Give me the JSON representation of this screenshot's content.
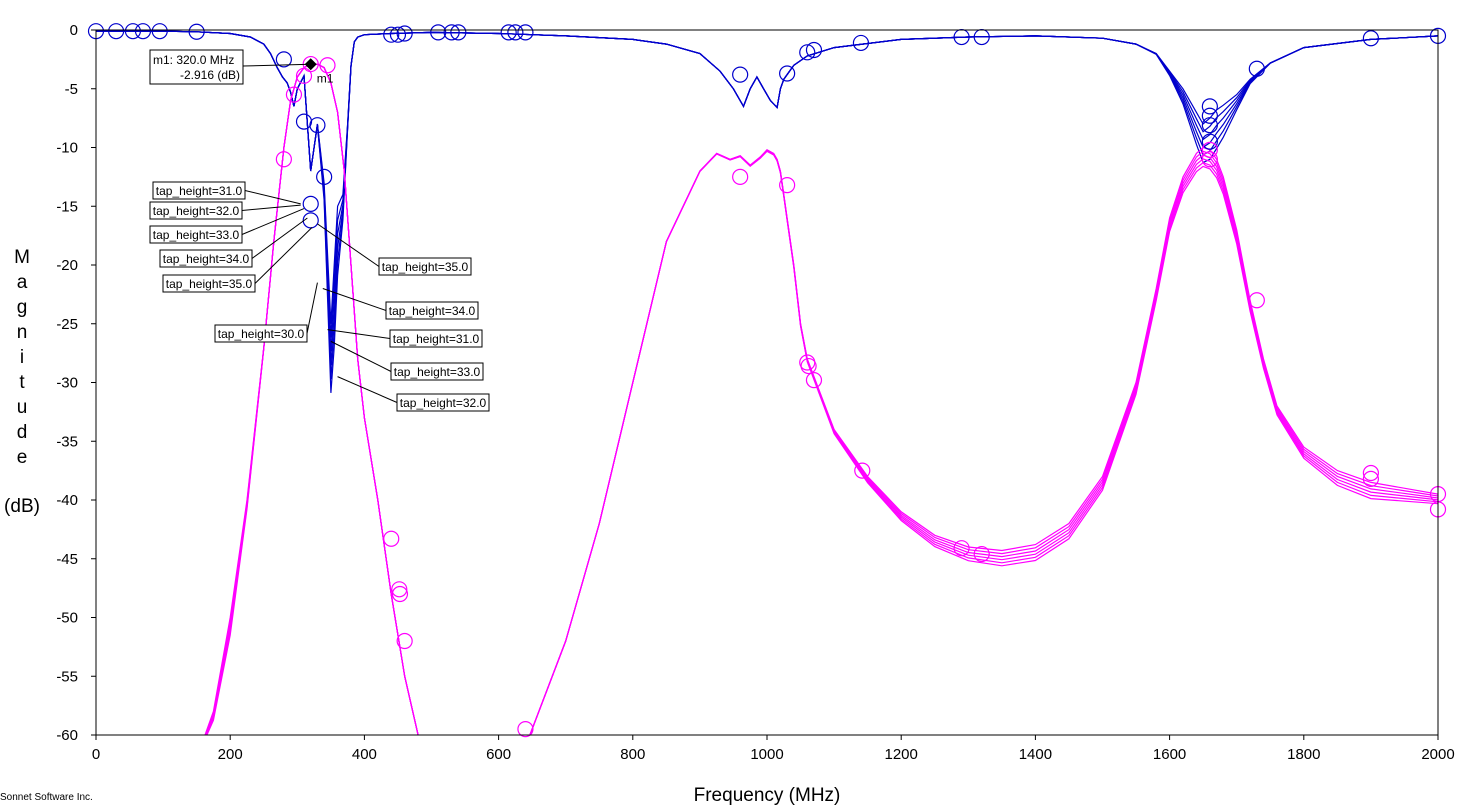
{
  "credit": "Sonnet Software Inc.",
  "chart_data": {
    "type": "line",
    "xlabel": "Frequency (MHz)",
    "ylabel_letters": [
      "M",
      "a",
      "g",
      "n",
      "i",
      "t",
      "u",
      "d",
      "e"
    ],
    "ylabel_unit": "(dB)",
    "xlim": [
      0,
      2000
    ],
    "ylim": [
      -60,
      0
    ],
    "xticks": [
      0,
      200,
      400,
      600,
      800,
      1000,
      1200,
      1400,
      1600,
      1800,
      2000
    ],
    "yticks": [
      0,
      -5,
      -10,
      -15,
      -20,
      -25,
      -30,
      -35,
      -40,
      -45,
      -50,
      -55,
      -60
    ],
    "grid": false,
    "colors": {
      "transmission": "#0000cc",
      "reflection": "#ff00ff",
      "axis": "#000000"
    },
    "parameter": "tap_height",
    "parameter_values": [
      30.0,
      31.0,
      32.0,
      33.0,
      34.0,
      35.0
    ],
    "transmission_base": {
      "x": [
        0,
        100,
        150,
        200,
        230,
        250,
        260,
        270,
        278,
        285,
        290,
        295,
        300,
        310,
        320,
        330,
        340,
        350,
        355,
        360,
        368,
        375,
        380,
        385,
        390,
        400,
        440,
        500,
        600,
        700,
        800,
        850,
        900,
        930,
        950,
        965,
        975,
        985,
        995,
        1005,
        1015,
        1020,
        1025,
        1030,
        1040,
        1060,
        1100,
        1200,
        1300,
        1400,
        1500,
        1550,
        1580,
        1600,
        1620,
        1640,
        1650,
        1660,
        1670,
        1680,
        1700,
        1720,
        1750,
        1800,
        1900,
        2000
      ],
      "y": [
        -0.1,
        -0.1,
        -0.15,
        -0.3,
        -0.6,
        -1.2,
        -2.0,
        -3.2,
        -4.0,
        -4.5,
        -5.3,
        -6.5,
        -5.0,
        -3.9,
        -12,
        -8.0,
        -13,
        -25,
        -20,
        -15,
        -14,
        -8,
        -3,
        -1,
        -0.6,
        -0.4,
        -0.3,
        -0.2,
        -0.3,
        -0.5,
        -0.8,
        -1.2,
        -2.0,
        -3.5,
        -5.0,
        -6.5,
        -5.0,
        -4.0,
        -5.0,
        -6.0,
        -6.6,
        -5.0,
        -4.2,
        -3.8,
        -3.0,
        -2.2,
        -1.5,
        -0.8,
        -0.6,
        -0.5,
        -0.7,
        -1.2,
        -2.0,
        -3.5,
        -5.0,
        -7.0,
        -8.0,
        -7.5,
        -6.8,
        -6.4,
        -5.5,
        -4.2,
        -2.8,
        -1.5,
        -0.8,
        -0.5
      ]
    },
    "transmission_dip_offsets": [
      0,
      -0.7,
      -1.4,
      -2.1,
      -2.8,
      -3.5
    ],
    "reflection_base": {
      "x": [
        150,
        175,
        200,
        225,
        250,
        265,
        280,
        290,
        300,
        310,
        320,
        330,
        340,
        350,
        360,
        370,
        380,
        390,
        400,
        420,
        440,
        460,
        480,
        500,
        640,
        700,
        750,
        800,
        850,
        900,
        925,
        945,
        960,
        975,
        990,
        1000,
        1010,
        1015,
        1020,
        1025,
        1030,
        1040,
        1050,
        1060,
        1080,
        1100,
        1150,
        1200,
        1250,
        1300,
        1350,
        1400,
        1450,
        1500,
        1550,
        1580,
        1600,
        1620,
        1640,
        1650,
        1660,
        1670,
        1680,
        1700,
        1720,
        1740,
        1760,
        1800,
        1850,
        1900,
        2000
      ],
      "y": [
        -65,
        -58,
        -50,
        -40,
        -27,
        -18,
        -10,
        -6,
        -4,
        -3.2,
        -2.9,
        -2.9,
        -3.2,
        -4.5,
        -7.0,
        -12,
        -20,
        -28,
        -33,
        -40,
        -48,
        -55,
        -60,
        -66,
        -61,
        -52,
        -42,
        -30,
        -18,
        -12,
        -10.5,
        -11,
        -10.7,
        -11.5,
        -10.8,
        -10.2,
        -10.5,
        -11,
        -12,
        -14,
        -16,
        -20,
        -25,
        -28,
        -31,
        -34,
        -38,
        -41,
        -43,
        -44,
        -44.3,
        -43.8,
        -42,
        -38,
        -30,
        -22,
        -16,
        -12.5,
        -10.5,
        -10,
        -10.2,
        -11,
        -12.5,
        -17,
        -23,
        -28,
        -32,
        -35.5,
        -37.5,
        -38.5,
        -39.5
      ]
    },
    "reflection_offsets": [
      0,
      0.3,
      0.6,
      0.9,
      1.2,
      1.5
    ],
    "transmission_markers": [
      [
        0,
        -0.1
      ],
      [
        30,
        -0.1
      ],
      [
        55,
        -0.1
      ],
      [
        70,
        -0.1
      ],
      [
        95,
        -0.1
      ],
      [
        150,
        -0.15
      ],
      [
        280,
        -2.5
      ],
      [
        310,
        -7.8
      ],
      [
        320,
        -14.8
      ],
      [
        320,
        -16.2
      ],
      [
        330,
        -8.1
      ],
      [
        340,
        -12.5
      ],
      [
        440,
        -0.4
      ],
      [
        450,
        -0.4
      ],
      [
        460,
        -0.3
      ],
      [
        510,
        -0.2
      ],
      [
        530,
        -0.2
      ],
      [
        540,
        -0.2
      ],
      [
        615,
        -0.2
      ],
      [
        625,
        -0.2
      ],
      [
        640,
        -0.2
      ],
      [
        960,
        -3.8
      ],
      [
        1030,
        -3.7
      ],
      [
        1060,
        -1.9
      ],
      [
        1070,
        -1.7
      ],
      [
        1140,
        -1.1
      ],
      [
        1290,
        -0.6
      ],
      [
        1320,
        -0.6
      ],
      [
        1660,
        -6.5
      ],
      [
        1660,
        -7.3
      ],
      [
        1660,
        -8.1
      ],
      [
        1660,
        -9.5
      ],
      [
        1730,
        -3.3
      ],
      [
        1900,
        -0.7
      ],
      [
        2000,
        -0.5
      ]
    ],
    "reflection_markers": [
      [
        280,
        -11
      ],
      [
        295,
        -5.5
      ],
      [
        310,
        -3.9
      ],
      [
        320,
        -2.9
      ],
      [
        345,
        -3.0
      ],
      [
        440,
        -43.3
      ],
      [
        452,
        -47.6
      ],
      [
        453,
        -48.0
      ],
      [
        460,
        -52
      ],
      [
        640,
        -59.5
      ],
      [
        960,
        -12.5
      ],
      [
        1030,
        -13.2
      ],
      [
        1060,
        -28.3
      ],
      [
        1062,
        -28.6
      ],
      [
        1070,
        -29.8
      ],
      [
        1142,
        -37.5
      ],
      [
        1290,
        -44.1
      ],
      [
        1320,
        -44.6
      ],
      [
        1660,
        -10.2
      ],
      [
        1660,
        -11.0
      ],
      [
        1730,
        -23.0
      ],
      [
        1900,
        -37.7
      ],
      [
        1900,
        -38.2
      ],
      [
        2000,
        -39.5
      ],
      [
        2000,
        -40.8
      ]
    ],
    "marker": {
      "label": "m1",
      "x": 320,
      "y": -2.916,
      "readout_line1": "m1: 320.0 MHz",
      "readout_line2": "-2.916  (dB)"
    },
    "annotations": [
      {
        "text": "tap_height=31.0",
        "target": [
          305,
          -14.8
        ]
      },
      {
        "text": "tap_height=32.0",
        "target": [
          305,
          -14.9
        ]
      },
      {
        "text": "tap_height=33.0",
        "target": [
          310,
          -15.2
        ]
      },
      {
        "text": "tap_height=34.0",
        "target": [
          315,
          -16.0
        ]
      },
      {
        "text": "tap_height=35.0",
        "target": [
          322,
          -16.8
        ]
      },
      {
        "text": "tap_height=30.0",
        "target": [
          330,
          -21.5
        ]
      },
      {
        "text": "tap_height=35.0",
        "target": [
          330,
          -16.5
        ]
      },
      {
        "text": "tap_height=34.0",
        "target": [
          338,
          -22.0
        ]
      },
      {
        "text": "tap_height=31.0",
        "target": [
          345,
          -25.5
        ]
      },
      {
        "text": "tap_height=33.0",
        "target": [
          350,
          -26.5
        ]
      },
      {
        "text": "tap_height=32.0",
        "target": [
          360,
          -29.5
        ]
      }
    ]
  }
}
